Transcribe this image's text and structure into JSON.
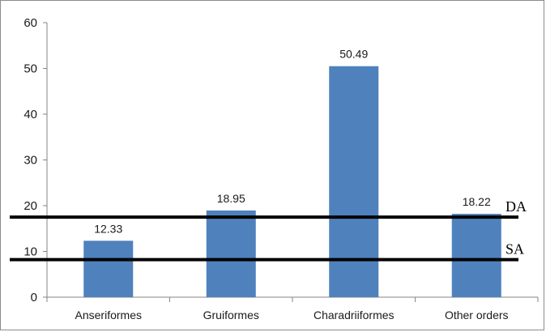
{
  "chart_data": {
    "type": "bar",
    "categories": [
      "Anseriformes",
      "Gruiformes",
      "Charadriiformes",
      "Other orders"
    ],
    "values": [
      12.33,
      18.95,
      50.49,
      18.22
    ],
    "data_labels": [
      "12.33",
      "18.95",
      "50.49",
      "18.22"
    ],
    "yticks": [
      0,
      10,
      20,
      30,
      40,
      50,
      60
    ],
    "ylim": [
      0,
      60
    ],
    "grid": false,
    "bar_color": "#4f81bd",
    "reference_lines": [
      {
        "label": "DA",
        "value": 17.5,
        "color": "#000000"
      },
      {
        "label": "SA",
        "value": 8.2,
        "color": "#000000"
      }
    ]
  }
}
